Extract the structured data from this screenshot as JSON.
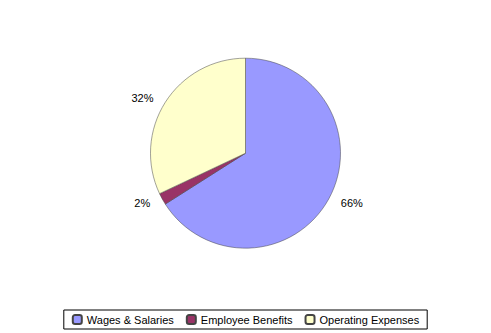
{
  "chart_data": {
    "type": "pie",
    "categories": [
      "Wages & Salaries",
      "Employee Benefits",
      "Operating Expenses"
    ],
    "values": [
      66,
      2,
      32
    ],
    "value_labels": [
      "66%",
      "2%",
      "32%"
    ],
    "colors": [
      "#9999ff",
      "#993366",
      "#ffffcc"
    ],
    "data_labels": true,
    "legend": "bottom"
  }
}
